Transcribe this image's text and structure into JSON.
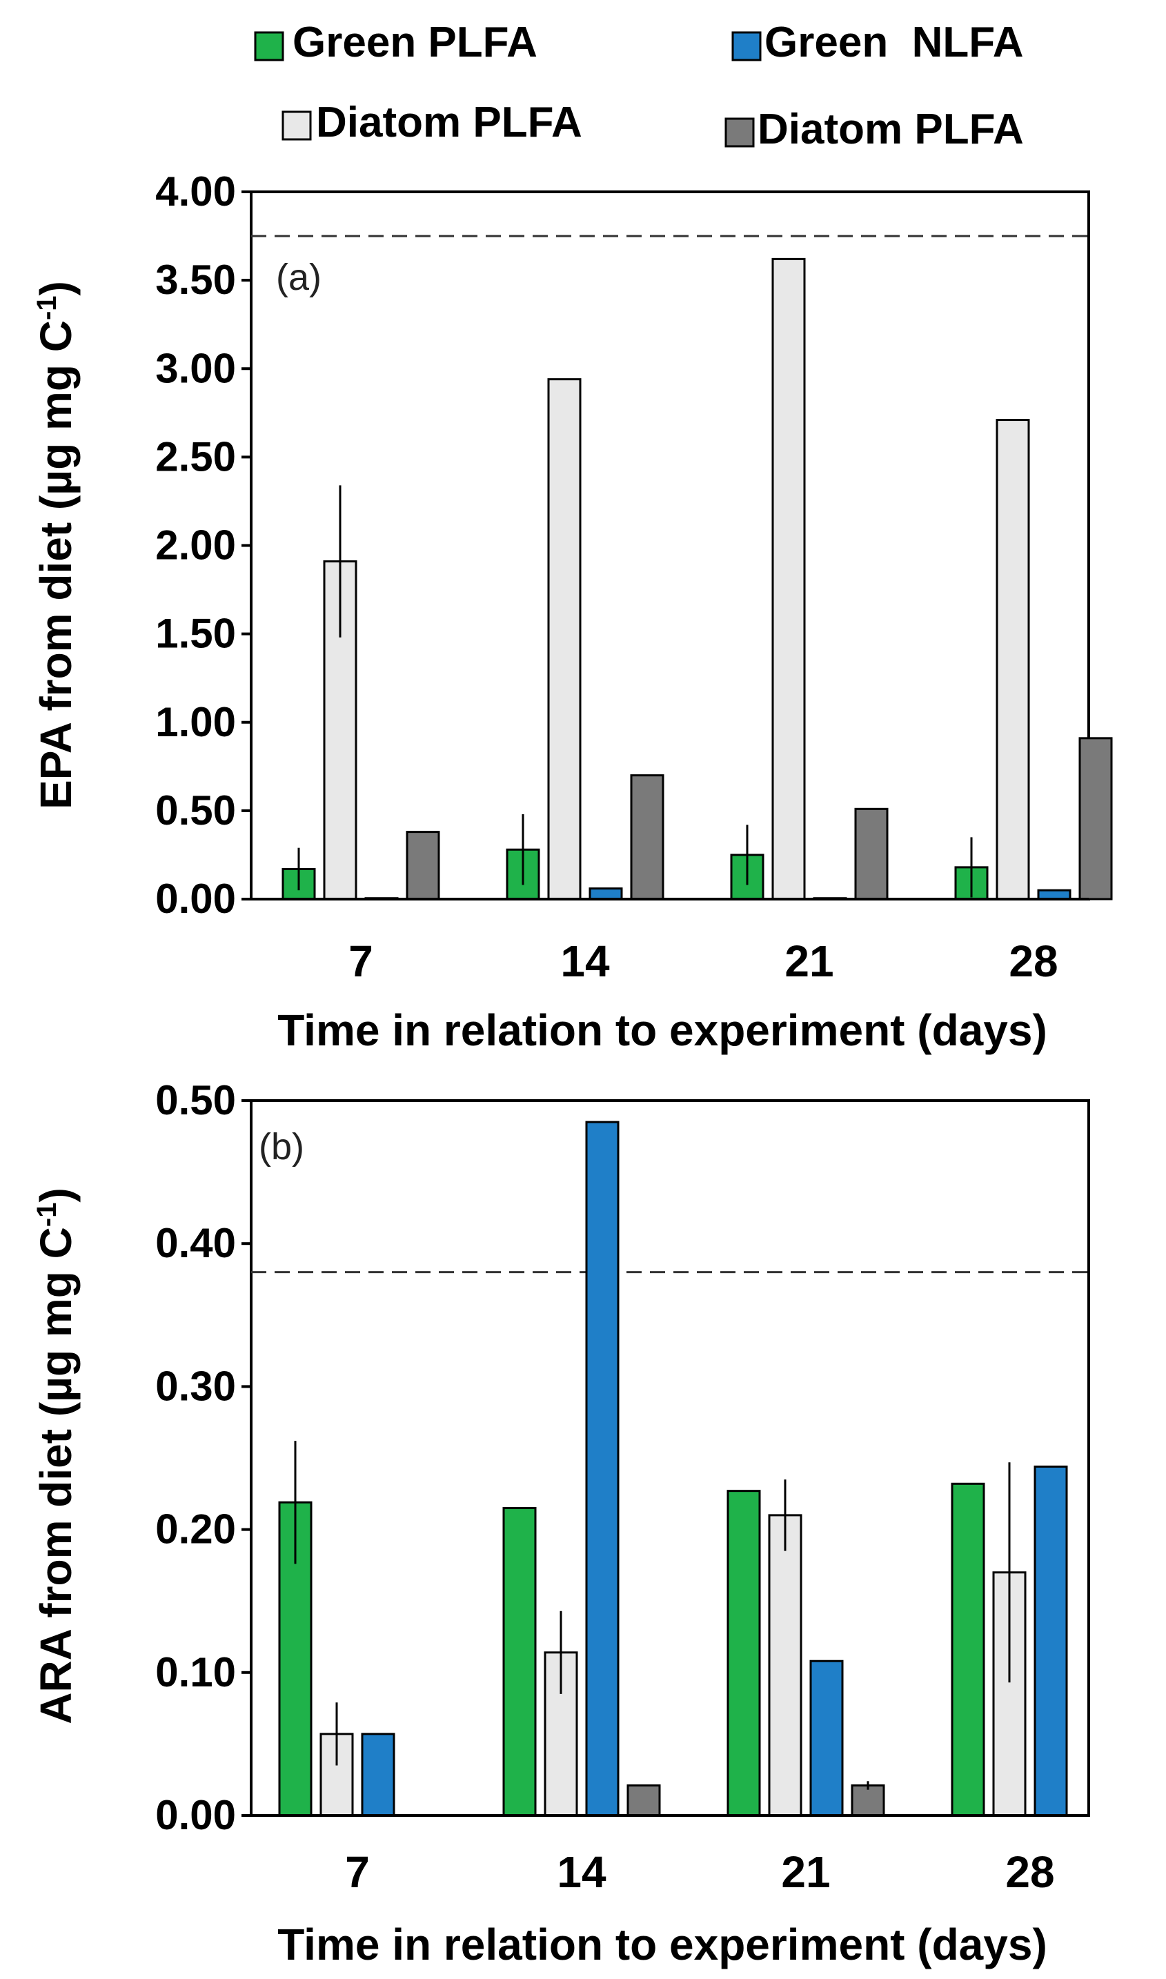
{
  "legend": {
    "items": [
      {
        "label": "Green PLFA",
        "color": "#1fb24a"
      },
      {
        "label": "Green  NLFA",
        "color": "#1f7fc8"
      },
      {
        "label": "Diatom PLFA",
        "color": "#e8e8e8"
      },
      {
        "label": "Diatom PLFA",
        "color": "#7a7a7a"
      }
    ]
  },
  "chart_data": [
    {
      "type": "bar",
      "panel_label": "(a)",
      "categories": [
        "7",
        "14",
        "21",
        "28"
      ],
      "xlabel": "Time in relation to experiment (days)",
      "ylabel": "EPA from diet (µg mg C",
      "ylabel_sup": "-1",
      "ylabel_close": ")",
      "ylim": [
        0,
        4.0
      ],
      "yticks": [
        "0.00",
        "0.50",
        "1.00",
        "1.50",
        "2.00",
        "2.50",
        "3.00",
        "3.50",
        "4.00"
      ],
      "reference_line": 3.75,
      "series": [
        {
          "name": "Green PLFA",
          "color": "#1fb24a",
          "values": [
            0.17,
            0.28,
            0.25,
            0.18
          ],
          "errors": [
            0.12,
            0.2,
            0.17,
            0.17
          ]
        },
        {
          "name": "Diatom PLFA",
          "color": "#e8e8e8",
          "values": [
            1.91,
            2.94,
            3.62,
            2.71
          ],
          "errors": [
            0.43,
            0,
            0,
            0
          ]
        },
        {
          "name": "Green  NLFA",
          "color": "#1f7fc8",
          "values": [
            0.005,
            0.06,
            0.005,
            0.05
          ],
          "errors": [
            0,
            0,
            0,
            0
          ]
        },
        {
          "name": "Diatom PLFA",
          "color": "#7a7a7a",
          "values": [
            0.38,
            0.7,
            0.51,
            0.91
          ],
          "errors": [
            0,
            0,
            0,
            0
          ]
        }
      ]
    },
    {
      "type": "bar",
      "panel_label": "(b)",
      "categories": [
        "7",
        "14",
        "21",
        "28"
      ],
      "xlabel": "Time in relation to experiment (days)",
      "ylabel": "ARA from diet (µg mg C",
      "ylabel_sup": "-1",
      "ylabel_close": ")",
      "ylim": [
        0,
        0.5
      ],
      "yticks": [
        "0.00",
        "0.10",
        "0.20",
        "0.30",
        "0.40",
        "0.50"
      ],
      "reference_line": 0.38,
      "series": [
        {
          "name": "Green PLFA",
          "color": "#1fb24a",
          "values": [
            0.219,
            0.215,
            0.227,
            0.232
          ],
          "errors": [
            0.043,
            0,
            0,
            0
          ]
        },
        {
          "name": "Diatom PLFA",
          "color": "#e8e8e8",
          "values": [
            0.057,
            0.114,
            0.21,
            0.17
          ],
          "errors": [
            0.022,
            0.029,
            0.025,
            0.077
          ]
        },
        {
          "name": "Green  NLFA",
          "color": "#1f7fc8",
          "values": [
            0.057,
            0.485,
            0.108,
            0.244
          ],
          "errors": [
            0,
            0,
            0,
            0
          ]
        },
        {
          "name": "Diatom PLFA",
          "color": "#7a7a7a",
          "values": [
            0,
            0.021,
            0.021,
            0
          ],
          "errors": [
            0,
            0,
            0.003,
            0
          ]
        }
      ]
    }
  ]
}
